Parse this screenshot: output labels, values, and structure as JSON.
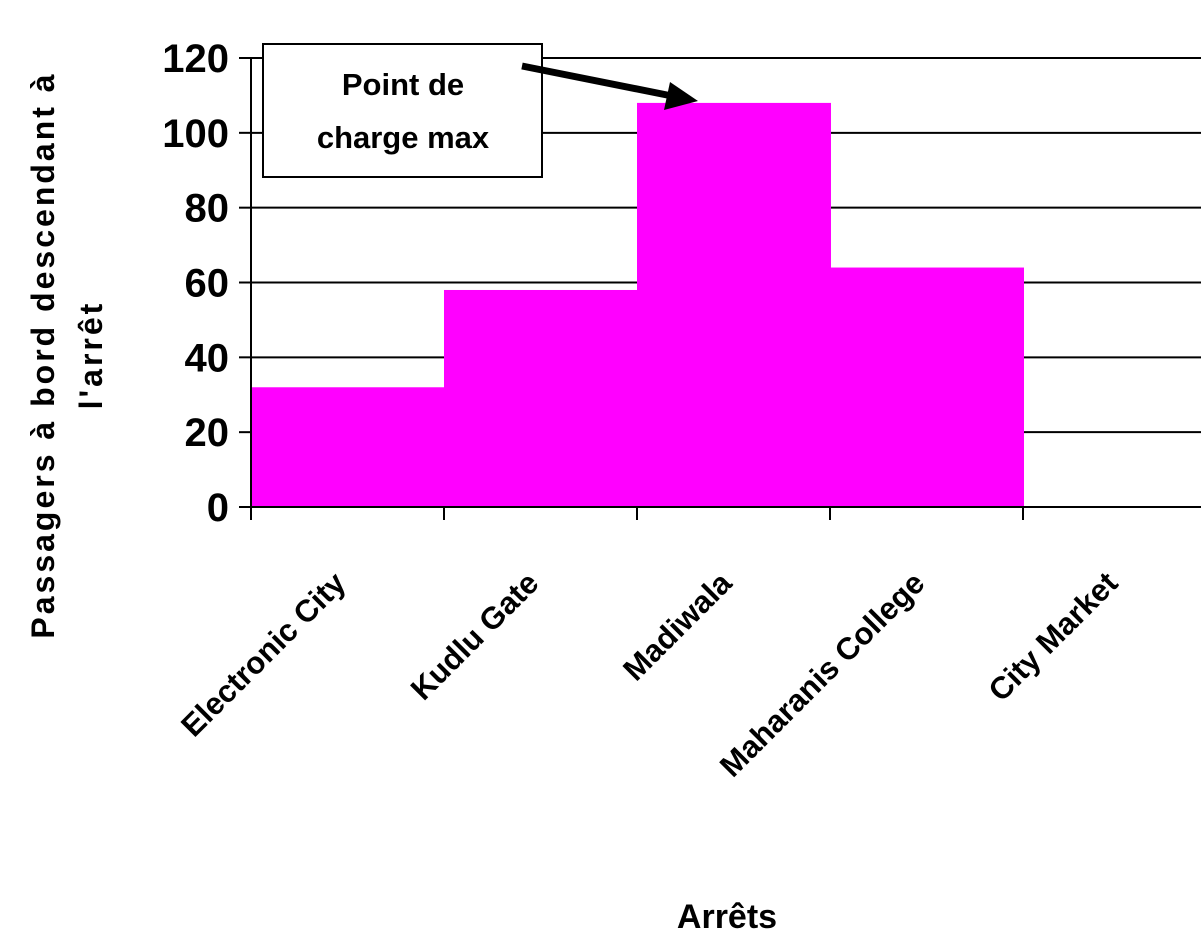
{
  "chart_data": {
    "type": "bar",
    "title": "",
    "xlabel": "Arrêts",
    "ylabel_lines": [
      "Passagers à bord descendant à",
      "l'arrêt"
    ],
    "categories": [
      "Electronic City",
      "Kudlu Gate",
      "Madiwala",
      "Maharanis College",
      "City Market"
    ],
    "values": [
      32,
      58,
      108,
      64,
      0
    ],
    "ylim": [
      0,
      120
    ],
    "yticks": [
      "0",
      "20",
      "40",
      "60",
      "80",
      "100",
      "120"
    ],
    "grid": true,
    "legend": "none",
    "bar_color": "#ff00ff",
    "annotation": {
      "lines": [
        "Point de",
        "charge max"
      ],
      "target_category": "Madiwala"
    }
  }
}
